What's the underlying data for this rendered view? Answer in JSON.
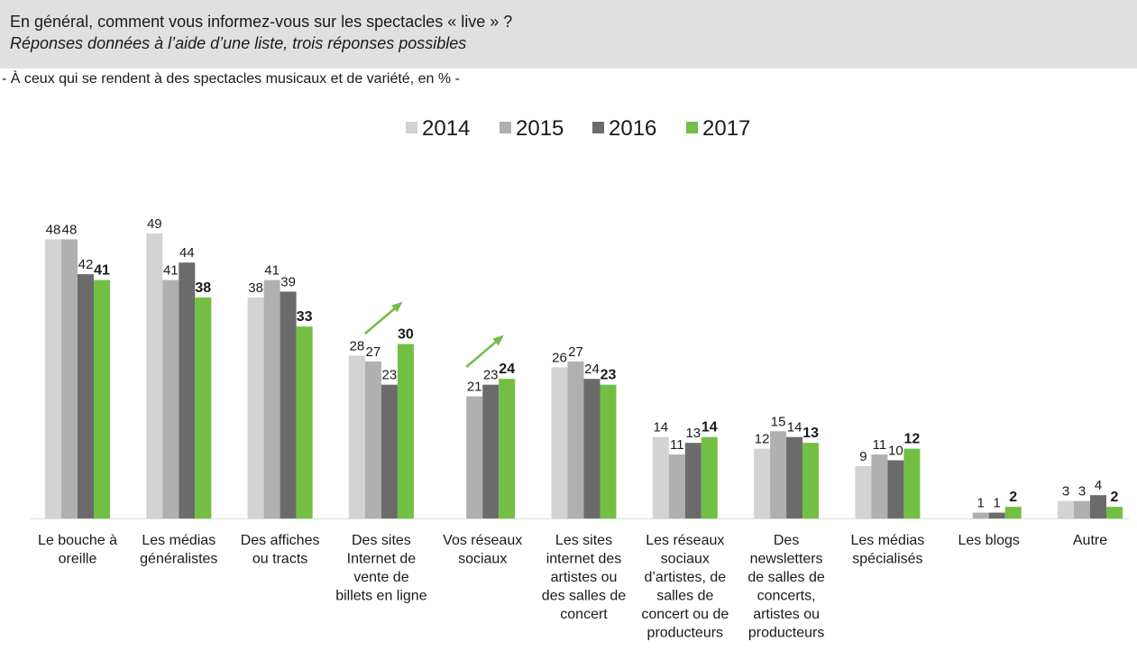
{
  "header": {
    "title": "En général, comment vous informez-vous sur les spectacles « live » ?",
    "subtitle": "Réponses données à l’aide d’une liste, trois réponses possibles"
  },
  "note": "- À ceux qui se rendent à des spectacles musicaux et de variété, en % -",
  "chart_data": {
    "type": "bar",
    "title": "",
    "xlabel": "",
    "ylabel": "",
    "ylim": [
      0,
      50
    ],
    "grid": false,
    "legend_position": "top-center",
    "categories": [
      [
        "Le bouche à",
        "oreille"
      ],
      [
        "Les médias",
        "généralistes"
      ],
      [
        "Des affiches",
        "ou tracts"
      ],
      [
        "Des sites",
        "Internet de",
        "vente de",
        "billets en ligne"
      ],
      [
        "Vos réseaux",
        "sociaux"
      ],
      [
        "Les sites",
        "internet des",
        "artistes ou",
        "des salles de",
        "concert"
      ],
      [
        "Les réseaux",
        "sociaux",
        "d’artistes, de",
        "salles de",
        "concert ou de",
        "producteurs"
      ],
      [
        "Des",
        "newsletters",
        "de salles de",
        "concerts,",
        "artistes ou",
        "producteurs"
      ],
      [
        "Les médias",
        "spécialisés"
      ],
      [
        "Les blogs"
      ],
      [
        "Autre"
      ]
    ],
    "series": [
      {
        "name": "2014",
        "color": "#d3d3d3",
        "values": [
          48,
          49,
          38,
          28,
          null,
          26,
          14,
          12,
          9,
          null,
          3
        ]
      },
      {
        "name": "2015",
        "color": "#b0b0b0",
        "values": [
          48,
          41,
          41,
          27,
          21,
          27,
          11,
          15,
          11,
          1,
          3
        ]
      },
      {
        "name": "2016",
        "color": "#6b6b6b",
        "values": [
          42,
          44,
          39,
          23,
          23,
          24,
          13,
          14,
          10,
          1,
          4
        ]
      },
      {
        "name": "2017",
        "color": "#72bf44",
        "values": [
          41,
          38,
          33,
          30,
          24,
          23,
          14,
          13,
          12,
          2,
          2
        ]
      }
    ],
    "arrows": [
      {
        "category_index": 3,
        "color": "#72bf44"
      },
      {
        "category_index": 4,
        "color": "#72bf44"
      }
    ]
  }
}
